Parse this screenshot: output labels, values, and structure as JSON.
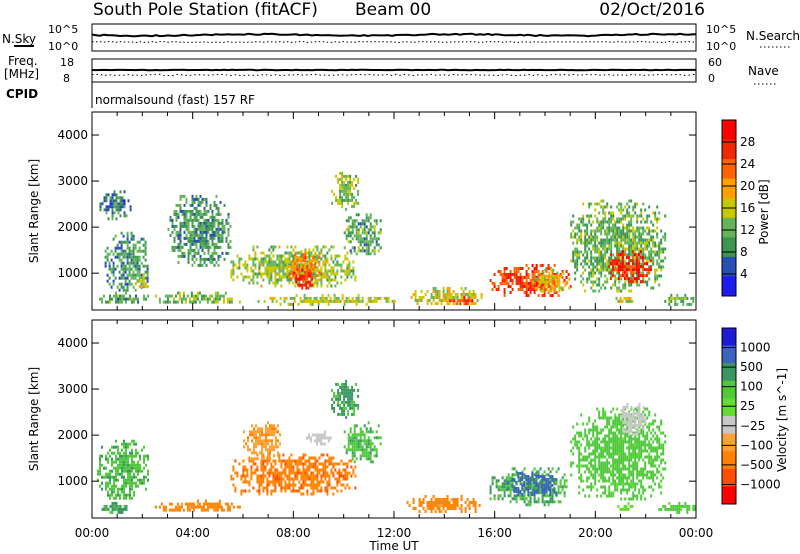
{
  "header": {
    "station": "South Pole Station (fitACF)",
    "beam": "Beam 00",
    "date": "02/Oct/2016"
  },
  "panels": {
    "nsky": {
      "label": "N.Sky",
      "right_label": "N.Search",
      "left_ticks": [
        "10^5",
        "10^0"
      ],
      "right_ticks": [
        "10^5",
        "10^0"
      ]
    },
    "freq": {
      "label_line1": "Freq.",
      "label_line2": "[MHz]",
      "right_label": "Nave",
      "left_ticks": [
        "18",
        "8"
      ],
      "right_ticks": [
        "60",
        "0"
      ]
    },
    "cpid": {
      "label": "CPID",
      "text": "normalsound (fast) 157 RF"
    }
  },
  "colors": {
    "power_scale": [
      "#1c1cf0",
      "#2850b4",
      "#3c9650",
      "#64b45a",
      "#c8c800",
      "#ffa000",
      "#ff6400",
      "#f02800",
      "#ff0000"
    ],
    "velocity_scale": [
      "#1c1cd2",
      "#3c64be",
      "#3c9664",
      "#50c83c",
      "#64dc32",
      "#c8c8c8",
      "#ffa032",
      "#ff8200",
      "#ff5000",
      "#ff0000"
    ]
  },
  "chart_data": [
    {
      "type": "heatmap",
      "quantity": "Power",
      "ylabel": "Slant Range [km]",
      "xlabel": "",
      "x_ticks": [
        "00:00",
        "04:00",
        "08:00",
        "12:00",
        "16:00",
        "20:00",
        "00:00"
      ],
      "y_ticks": [
        1000,
        2000,
        3000,
        4000
      ],
      "ylim": [
        200,
        4500
      ],
      "xlim_hours": [
        0,
        24
      ],
      "colorbar": {
        "label": "Power [dB]",
        "ticks": [
          "28",
          "24",
          "20",
          "16",
          "12",
          "8",
          "4"
        ],
        "range": [
          0,
          30
        ]
      },
      "regions": [
        {
          "t0": 0.2,
          "t1": 2.2,
          "r0": 350,
          "r1": 600,
          "level": 10
        },
        {
          "t0": 0.5,
          "t1": 2.2,
          "r0": 600,
          "r1": 1900,
          "level": 9
        },
        {
          "t0": 0.3,
          "t1": 1.5,
          "r0": 2200,
          "r1": 2800,
          "level": 7
        },
        {
          "t0": 1.7,
          "t1": 2.2,
          "r0": 700,
          "r1": 1000,
          "level": 16
        },
        {
          "t0": 3.0,
          "t1": 5.5,
          "r0": 1200,
          "r1": 2700,
          "level": 9
        },
        {
          "t0": 2.5,
          "t1": 6.0,
          "r0": 350,
          "r1": 600,
          "level": 11
        },
        {
          "t0": 5.5,
          "t1": 10.5,
          "r0": 700,
          "r1": 1600,
          "level": 13
        },
        {
          "t0": 7.8,
          "t1": 9.0,
          "r0": 800,
          "r1": 1500,
          "level": 20
        },
        {
          "t0": 8.0,
          "t1": 8.8,
          "r0": 700,
          "r1": 1100,
          "level": 26
        },
        {
          "t0": 9.5,
          "t1": 10.6,
          "r0": 2400,
          "r1": 3200,
          "level": 13
        },
        {
          "t0": 10.0,
          "t1": 11.5,
          "r0": 1400,
          "r1": 2300,
          "level": 10
        },
        {
          "t0": 6.5,
          "t1": 12.0,
          "r0": 350,
          "r1": 550,
          "level": 14
        },
        {
          "t0": 12.5,
          "t1": 15.5,
          "r0": 350,
          "r1": 700,
          "level": 15
        },
        {
          "t0": 14.2,
          "t1": 15.2,
          "r0": 350,
          "r1": 500,
          "level": 24
        },
        {
          "t0": 15.8,
          "t1": 19.0,
          "r0": 500,
          "r1": 1200,
          "level": 24
        },
        {
          "t0": 17.5,
          "t1": 19.0,
          "r0": 600,
          "r1": 1100,
          "level": 16
        },
        {
          "t0": 19.0,
          "t1": 22.8,
          "r0": 600,
          "r1": 2600,
          "level": 11
        },
        {
          "t0": 20.5,
          "t1": 22.2,
          "r0": 800,
          "r1": 1500,
          "level": 25
        },
        {
          "t0": 20.8,
          "t1": 21.5,
          "r0": 350,
          "r1": 550,
          "level": 15
        },
        {
          "t0": 22.5,
          "t1": 24.0,
          "r0": 350,
          "r1": 550,
          "level": 11
        }
      ]
    },
    {
      "type": "heatmap",
      "quantity": "Velocity",
      "ylabel": "Slant Range [km]",
      "xlabel": "Time UT",
      "x_ticks": [
        "00:00",
        "04:00",
        "08:00",
        "12:00",
        "16:00",
        "20:00",
        "00:00"
      ],
      "y_ticks": [
        1000,
        2000,
        3000,
        4000
      ],
      "ylim": [
        200,
        4500
      ],
      "xlim_hours": [
        0,
        24
      ],
      "colorbar": {
        "label": "Velocity [m s^-1]",
        "ticks": [
          "1000",
          "500",
          "100",
          "25",
          "−25",
          "−100",
          "−500",
          "−1000"
        ]
      },
      "regions": [
        {
          "t0": 0.2,
          "t1": 2.2,
          "r0": 600,
          "r1": 1900,
          "level": 200
        },
        {
          "t0": 0.3,
          "t1": 1.5,
          "r0": 350,
          "r1": 550,
          "level": 300
        },
        {
          "t0": 2.5,
          "t1": 6.0,
          "r0": 350,
          "r1": 600,
          "level": -150
        },
        {
          "t0": 5.5,
          "t1": 10.5,
          "r0": 700,
          "r1": 1600,
          "level": -200
        },
        {
          "t0": 6.0,
          "t1": 7.5,
          "r0": 1500,
          "r1": 2300,
          "level": -80
        },
        {
          "t0": 8.5,
          "t1": 9.5,
          "r0": 1800,
          "r1": 2100,
          "level": 0
        },
        {
          "t0": 9.5,
          "t1": 10.6,
          "r0": 2400,
          "r1": 3200,
          "level": 300
        },
        {
          "t0": 10.0,
          "t1": 11.5,
          "r0": 1400,
          "r1": 2300,
          "level": 200
        },
        {
          "t0": 12.5,
          "t1": 15.5,
          "r0": 350,
          "r1": 700,
          "level": -150
        },
        {
          "t0": 15.8,
          "t1": 19.0,
          "r0": 500,
          "r1": 1300,
          "level": 250
        },
        {
          "t0": 16.5,
          "t1": 18.5,
          "r0": 700,
          "r1": 1200,
          "level": 700
        },
        {
          "t0": 19.0,
          "t1": 22.8,
          "r0": 600,
          "r1": 2600,
          "level": 150
        },
        {
          "t0": 20.8,
          "t1": 21.5,
          "r0": 350,
          "r1": 550,
          "level": 60
        },
        {
          "t0": 21.0,
          "t1": 22.0,
          "r0": 2000,
          "r1": 2700,
          "level": 0
        },
        {
          "t0": 22.5,
          "t1": 24.0,
          "r0": 350,
          "r1": 550,
          "level": 150
        }
      ]
    }
  ]
}
